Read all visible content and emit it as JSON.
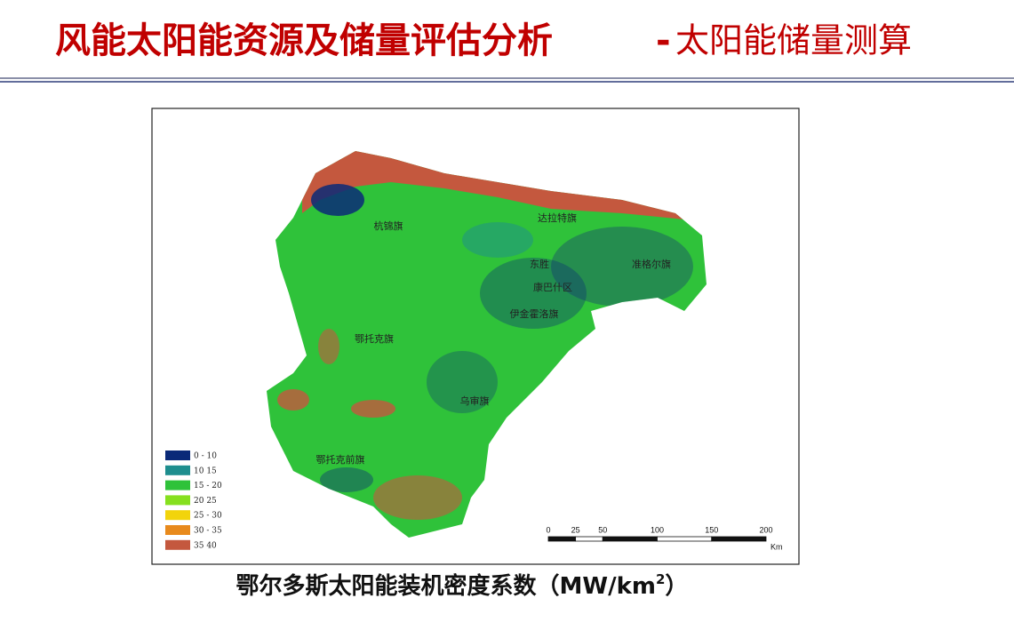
{
  "header": {
    "title_main": "风能太阳能资源及储量评估分析",
    "title_dash": "-",
    "title_sub": "太阳能储量测算"
  },
  "map": {
    "labels": [
      "杭锦旗",
      "达拉特旗",
      "东胜",
      "准格尔旗",
      "康巴什区",
      "伊金霍洛旗",
      "鄂托克旗",
      "乌审旗",
      "鄂托克前旗"
    ],
    "legend": [
      {
        "label": "0 - 10",
        "color": "#0a2a78"
      },
      {
        "label": "10   15",
        "color": "#1e8e8e"
      },
      {
        "label": "15 - 20",
        "color": "#2fc23a"
      },
      {
        "label": "20   25",
        "color": "#86e01e"
      },
      {
        "label": "25 - 30",
        "color": "#f2d40c"
      },
      {
        "label": "30 - 35",
        "color": "#e88a1c"
      },
      {
        "label": "35   40",
        "color": "#c4583e"
      }
    ],
    "scale": {
      "ticks": [
        0,
        25,
        50,
        100,
        150,
        200
      ],
      "unit": "Km"
    }
  },
  "caption": {
    "text": "鄂尔多斯太阳能装机密度系数（MW/km",
    "sup": "2",
    "close": "）"
  }
}
